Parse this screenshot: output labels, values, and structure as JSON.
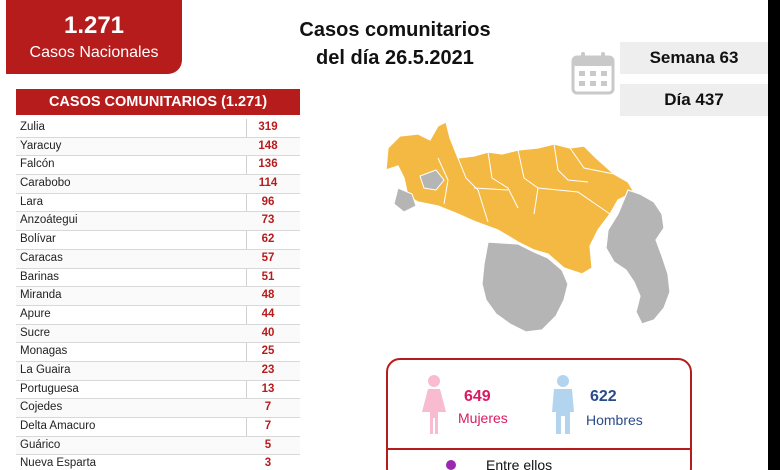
{
  "national": {
    "count": "1.271",
    "label": "Casos Nacionales"
  },
  "header": {
    "line1": "Casos comunitarios",
    "line2": "del día 26.5.2021"
  },
  "week": "Semana 63",
  "day": "Día 437",
  "table": {
    "title": "CASOS COMUNITARIOS (1.271)",
    "rows": [
      {
        "state": "Zulia",
        "value": "319"
      },
      {
        "state": "Yaracuy",
        "value": "148"
      },
      {
        "state": "Falcón",
        "value": "136"
      },
      {
        "state": "Carabobo",
        "value": "114"
      },
      {
        "state": "Lara",
        "value": "96"
      },
      {
        "state": "Anzoátegui",
        "value": "73"
      },
      {
        "state": "Bolívar",
        "value": "62"
      },
      {
        "state": "Caracas",
        "value": "57"
      },
      {
        "state": "Barinas",
        "value": "51"
      },
      {
        "state": "Miranda",
        "value": "48"
      },
      {
        "state": "Apure",
        "value": "44"
      },
      {
        "state": "Sucre",
        "value": "40"
      },
      {
        "state": "Monagas",
        "value": "25"
      },
      {
        "state": "La Guaira",
        "value": "23"
      },
      {
        "state": "Portuguesa",
        "value": "13"
      },
      {
        "state": "Cojedes",
        "value": "7"
      },
      {
        "state": "Delta Amacuro",
        "value": "7"
      },
      {
        "state": "Guárico",
        "value": "5"
      },
      {
        "state": "Nueva Esparta",
        "value": "3"
      }
    ]
  },
  "gender": {
    "women_count": "649",
    "women_label": "Mujeres",
    "men_count": "622",
    "men_label": "Hombres",
    "among_label": "Entre ellos"
  },
  "colors": {
    "brand_red": "#b71c1c",
    "map_affected": "#f4b942",
    "map_unaffected": "#b5b5b5",
    "women": "#d81b60",
    "men": "#2a4a8a",
    "women_icon": "#f8bbd0",
    "men_icon": "#b3d4ee"
  },
  "icons": {
    "calendar": "calendar-icon",
    "woman": "woman-icon",
    "man": "man-icon"
  }
}
